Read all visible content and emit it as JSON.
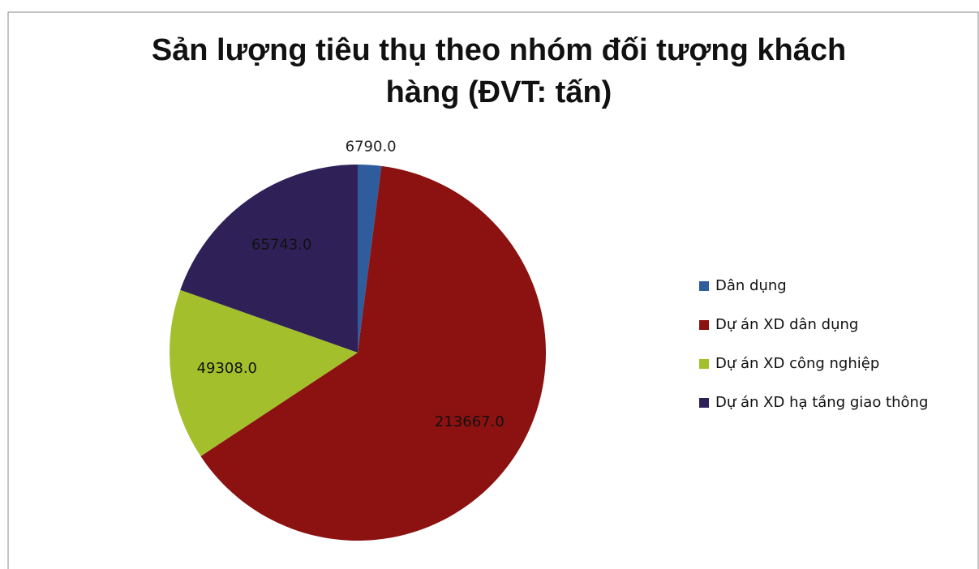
{
  "chart_data": {
    "type": "pie",
    "title": "Sản lượng tiêu thụ theo nhóm đối tượng khách hàng (ĐVT: tấn)",
    "categories": [
      "Dân dụng",
      "Dự án XD dân dụng",
      "Dự án XD công nghiệp",
      "Dự án XD hạ tầng giao thông"
    ],
    "values": [
      6790,
      213667,
      49308,
      65743
    ],
    "value_labels": [
      "6790.0",
      "213667.0",
      "49308.0",
      "65743.0"
    ],
    "colors": [
      "#2f5c9c",
      "#8c1111",
      "#a4bf2c",
      "#2f2158"
    ],
    "legend": "right"
  }
}
